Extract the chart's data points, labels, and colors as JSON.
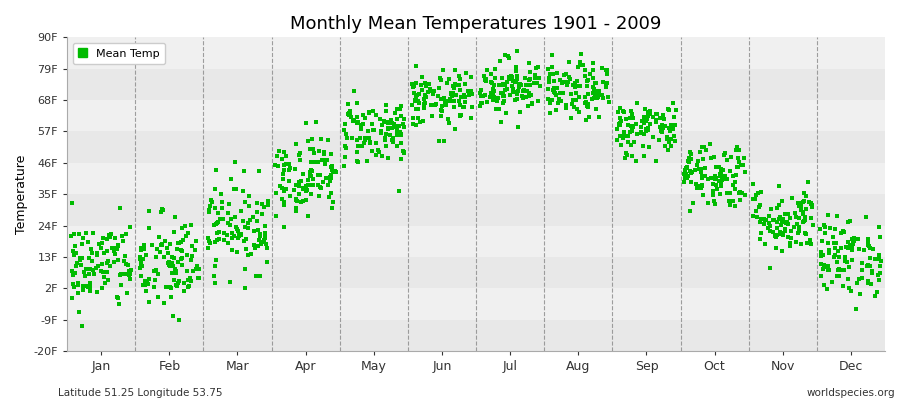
{
  "title": "Monthly Mean Temperatures 1901 - 2009",
  "ylabel": "Temperature",
  "xlabel_labels": [
    "Jan",
    "Feb",
    "Mar",
    "Apr",
    "May",
    "Jun",
    "Jul",
    "Aug",
    "Sep",
    "Oct",
    "Nov",
    "Dec"
  ],
  "ytick_values": [
    -20,
    -9,
    2,
    13,
    24,
    35,
    46,
    57,
    68,
    79,
    90
  ],
  "ytick_labels": [
    "-20F",
    "-9F",
    "2F",
    "13F",
    "24F",
    "35F",
    "46F",
    "57F",
    "68F",
    "79F",
    "90F"
  ],
  "ylim": [
    -20,
    90
  ],
  "xlim": [
    0.0,
    12.0
  ],
  "marker_color": "#00bb00",
  "marker": "s",
  "marker_size": 2.5,
  "band_color1": "#e8e8e8",
  "band_color2": "#f0f0f0",
  "legend_label": "Mean Temp",
  "footnote_left": "Latitude 51.25 Longitude 53.75",
  "footnote_right": "worldspecies.org",
  "n_years": 109,
  "monthly_means_f": [
    10,
    10,
    24,
    42,
    57,
    68,
    73,
    71,
    58,
    42,
    26,
    13
  ],
  "monthly_stds_f": [
    8,
    9,
    8,
    7,
    6,
    5,
    5,
    5,
    5,
    6,
    6,
    7
  ]
}
